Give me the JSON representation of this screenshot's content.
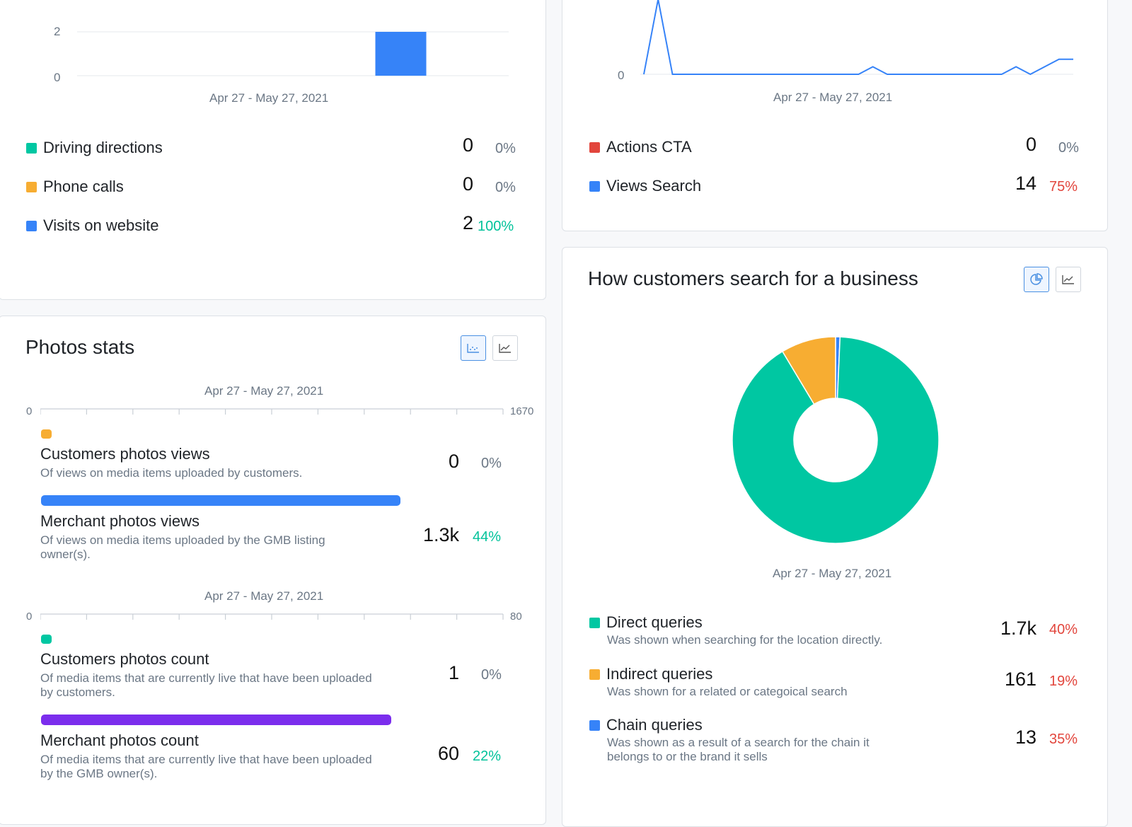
{
  "colors": {
    "teal": "#00c7a2",
    "orange": "#f7ad32",
    "blue": "#3683f8",
    "red": "#e2453c",
    "purple": "#7b2ded",
    "green": "#00c29a",
    "pct_red": "#e2453c"
  },
  "top_left": {
    "chart": {
      "y_ticks": [
        "2",
        "0"
      ],
      "date_range": "Apr 27 - May 27, 2021"
    },
    "legend": [
      {
        "label": "Driving directions",
        "value": "0",
        "percent": "0%",
        "color": "teal"
      },
      {
        "label": "Phone calls",
        "value": "0",
        "percent": "0%",
        "color": "orange"
      },
      {
        "label": "Visits on website",
        "value": "2",
        "percent": "100%",
        "color": "blue"
      }
    ]
  },
  "chart_data": [
    {
      "type": "bar",
      "title": "",
      "categories": [
        "",
        "",
        "",
        "",
        "",
        ""
      ],
      "values": [
        0,
        0,
        0,
        0,
        2,
        0
      ],
      "ylim": [
        0,
        2
      ],
      "xlabel": "Apr 27 - May 27, 2021",
      "ylabel": ""
    },
    {
      "type": "line",
      "title": "",
      "x": [
        1,
        2,
        3,
        4,
        5,
        6,
        7,
        8,
        9,
        10,
        11,
        12,
        13,
        14,
        15,
        16,
        17,
        18,
        19,
        20,
        21,
        22,
        23,
        24,
        25,
        26,
        27,
        28,
        29,
        30,
        31
      ],
      "series": [
        {
          "values": [
            0,
            10,
            0,
            0,
            0,
            0,
            0,
            0,
            0,
            0,
            0,
            0,
            0,
            0,
            0,
            0,
            1,
            0,
            0,
            0,
            0,
            0,
            0,
            0,
            0,
            0,
            1,
            0,
            1,
            2,
            2
          ]
        }
      ],
      "xlabel": "Apr 27 - May 27, 2021",
      "ylabel": ""
    },
    {
      "type": "pie",
      "title": "",
      "categories": [
        "Direct queries",
        "Indirect queries",
        "Chain queries"
      ],
      "values": [
        1700,
        161,
        13
      ],
      "xlabel": "Apr 27 - May 27, 2021"
    }
  ],
  "top_right": {
    "chart": {
      "y_tick": "0",
      "date_range": "Apr 27 - May 27, 2021"
    },
    "legend": [
      {
        "label": "Actions CTA",
        "value": "0",
        "percent": "0%",
        "color": "red"
      },
      {
        "label": "Views Search",
        "value": "14",
        "percent": "75%",
        "color": "blue"
      }
    ]
  },
  "photos": {
    "title": "Photos stats",
    "icons": [
      "scatter-chart-icon",
      "line-chart-icon"
    ],
    "group1": {
      "date_range": "Apr 27 - May 27, 2021",
      "axis_min": "0",
      "axis_max": "1670",
      "items": [
        {
          "label": "Customers photos views",
          "desc": "Of views on media items uploaded by customers.",
          "value": "0",
          "percent": "0%",
          "color": "orange",
          "fraction": 0
        },
        {
          "label": "Merchant photos views",
          "desc": "Of views on media items uploaded by the GMB listing owner(s).",
          "value": "1.3k",
          "percent": "44%",
          "color": "blue",
          "fraction": 0.77
        }
      ]
    },
    "group2": {
      "date_range": "Apr 27 - May 27, 2021",
      "axis_min": "0",
      "axis_max": "80",
      "items": [
        {
          "label": "Customers photos count",
          "desc": "Of media items that are currently live that have been uploaded by customers.",
          "value": "1",
          "percent": "0%",
          "color": "teal",
          "fraction": 0.0125
        },
        {
          "label": "Merchant photos count",
          "desc": "Of media items that are currently live that have been uploaded by the GMB owner(s).",
          "value": "60",
          "percent": "22%",
          "color": "purple",
          "fraction": 0.75
        }
      ]
    }
  },
  "search": {
    "title": "How customers search for a business",
    "icons": [
      "pie-chart-icon",
      "line-chart-icon"
    ],
    "date_range": "Apr 27 - May 27, 2021",
    "legend": [
      {
        "label": "Direct queries",
        "desc": "Was shown when searching for the location directly.",
        "value": "1.7k",
        "percent": "40%",
        "color": "teal"
      },
      {
        "label": "Indirect queries",
        "desc": "Was shown for a related or categoical search",
        "value": "161",
        "percent": "19%",
        "color": "orange"
      },
      {
        "label": "Chain queries",
        "desc": "Was shown as a result of a search for the chain it belongs to or the brand it sells",
        "value": "13",
        "percent": "35%",
        "color": "blue"
      }
    ]
  }
}
